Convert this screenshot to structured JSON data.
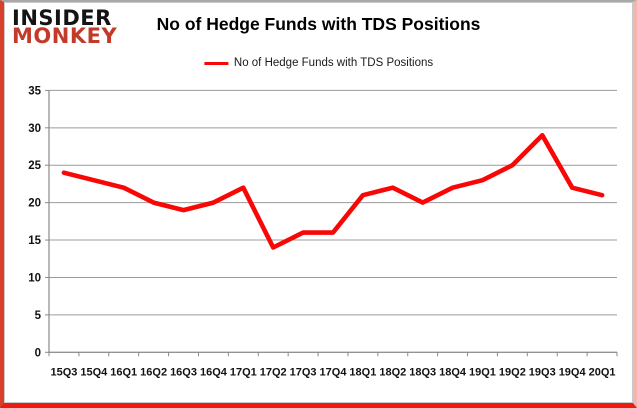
{
  "logo": {
    "line1": "INSIDER",
    "line2": "MONKEY"
  },
  "header": {
    "title": "No of Hedge Funds with TDS Positions"
  },
  "legend": {
    "label": "No of Hedge Funds with TDS Positions"
  },
  "colors": {
    "series_red": "#f90606",
    "logo_red": "#c43a2a",
    "gridline_gray": "#9c9c9c",
    "axis_gray": "#8a8a8a",
    "label_black": "#111111",
    "frame_bottom_red": "#ec1c12",
    "frame_left_red": "#d8402c",
    "frame_right_pink": "#f2b6ae",
    "frame_top_gray": "#a8a8a8"
  },
  "chart_data": {
    "type": "line",
    "title": "No of Hedge Funds with TDS Positions",
    "legend": [
      "No of Hedge Funds with TDS Positions"
    ],
    "legend_position": "top",
    "grid": true,
    "categories": [
      "15Q3",
      "15Q4",
      "16Q1",
      "16Q2",
      "16Q3",
      "16Q4",
      "17Q1",
      "17Q2",
      "17Q3",
      "17Q4",
      "18Q1",
      "18Q2",
      "18Q3",
      "18Q4",
      "19Q1",
      "19Q2",
      "19Q3",
      "19Q4",
      "20Q1"
    ],
    "values": [
      24,
      23,
      22,
      20,
      19,
      20,
      22,
      14,
      16,
      16,
      21,
      22,
      20,
      22,
      23,
      25,
      29,
      22,
      21
    ],
    "series": [
      {
        "name": "No of Hedge Funds with TDS Positions",
        "values": [
          24,
          23,
          22,
          20,
          19,
          20,
          22,
          14,
          16,
          16,
          21,
          22,
          20,
          22,
          23,
          25,
          29,
          22,
          21
        ]
      }
    ],
    "xlabel": "",
    "ylabel": "",
    "ylim": [
      0,
      35
    ],
    "ytick_step": 5,
    "yticks": [
      0,
      5,
      10,
      15,
      20,
      25,
      30,
      35
    ]
  }
}
